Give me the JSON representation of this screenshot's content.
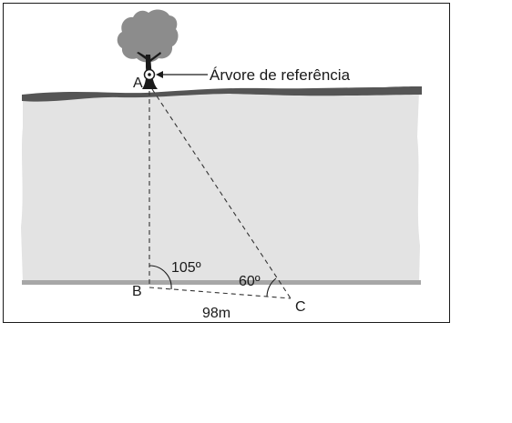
{
  "figure": {
    "tree_label": "Árvore de referência",
    "point_a": "A",
    "point_b": "B",
    "point_c": "C",
    "angle_b": "105º",
    "angle_c": "60º",
    "distance_bc": "98m"
  },
  "colors": {
    "frame": "#1a1a1a",
    "river": "#e3e3e3",
    "top_bank": "#555555",
    "bottom_bank": "#a7a7a7",
    "tree_canopy": "#8c8c8c",
    "trunk": "#1a1a1a",
    "dashed_line": "#333333"
  }
}
